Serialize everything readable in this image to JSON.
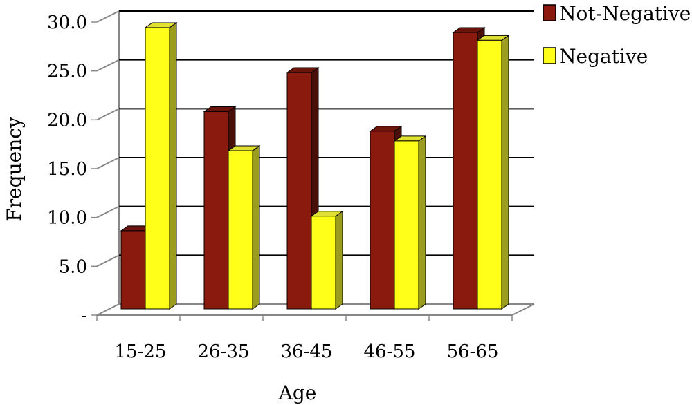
{
  "chart_data": {
    "type": "bar",
    "style": "3d-clustered-column",
    "xlabel": "Age",
    "ylabel": "Frequency",
    "categories": [
      "15-25",
      "26-35",
      "36-45",
      "46-55",
      "56-65"
    ],
    "series": [
      {
        "name": "Not-Negative",
        "values": [
          8.0,
          20.2,
          24.2,
          18.2,
          28.3
        ],
        "color": "#8b1a0e"
      },
      {
        "name": "Negative",
        "values": [
          28.8,
          16.2,
          9.5,
          17.2,
          27.5
        ],
        "color": "#ffff1a"
      }
    ],
    "ylim": [
      0,
      30
    ],
    "yticks": [
      {
        "value": 0,
        "label": "-"
      },
      {
        "value": 5,
        "label": "5.0"
      },
      {
        "value": 10,
        "label": "10.0"
      },
      {
        "value": 15,
        "label": "15.0"
      },
      {
        "value": 20,
        "label": "20.0"
      },
      {
        "value": 25,
        "label": "25.0"
      },
      {
        "value": 30,
        "label": "30.0"
      }
    ],
    "grid": true,
    "legend_position": "top-right",
    "colors": {
      "not_negative_side": "#4a0f08",
      "negative_side": "#9c9c20",
      "gridline": "#000000",
      "wall_edge": "#888888"
    }
  }
}
